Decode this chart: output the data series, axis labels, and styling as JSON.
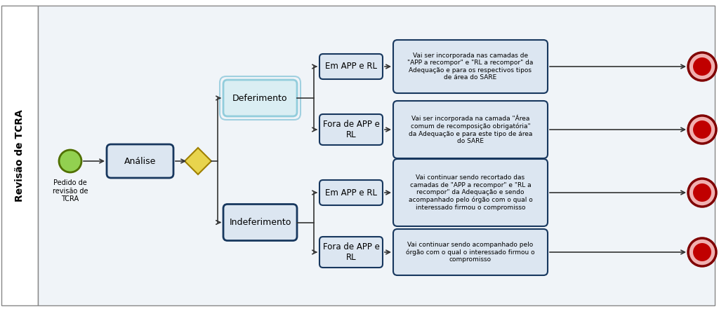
{
  "sidebar_text": "Revisão de TCRA",
  "start_label": "Pedido de\nrevisão de\nTCRA",
  "analise_label": "Análise",
  "deferimento_label": "Deferimento",
  "indeferimento_label": "Indeferimento",
  "branch1_label": "Em APP e RL",
  "branch2_label": "Fora de APP e\nRL",
  "branch3_label": "Em APP e RL",
  "branch4_label": "Fora de APP e\nRL",
  "desc1": "Vai ser incorporada nas camadas de\n\"APP a recompor\" e \"RL a recompor\" da\nAdequação e para os respectivos tipos\nde área do SARE",
  "desc2": "Vai ser incorporada na camada \"Área\ncomum de recomposição obrigatória\"\nda Adequação e para este tipo de área\ndo SARE",
  "desc3": "Vai continuar sendo recortado das\ncamadas de \"APP a recompor\" e \"RL a\nrecompor\" da Adequação e sendo\nacompanhado pelo órgão com o qual o\ninteressado firmou o compromisso",
  "desc4": "Vai continuar sendo acompanhado pelo\nórgão com o qual o interessado firmou o\ncompromisso",
  "box_fill_light": "#dce6f1",
  "box_border_dark": "#17375e",
  "defer_fill": "#daeef3",
  "defer_border": "#92cddc",
  "defer_outer_border": "#a0d0e0",
  "diamond_fill": "#e8d44d",
  "diamond_border": "#a08000",
  "start_fill": "#92d050",
  "start_border": "#507000",
  "end_outer_fill": "#f0b0b0",
  "end_inner_fill": "#c00000",
  "end_border": "#800000",
  "arrow_color": "#333333",
  "sidebar_bg": "#ffffff",
  "main_bg": "#f0f4f8",
  "outer_border": "#888888"
}
